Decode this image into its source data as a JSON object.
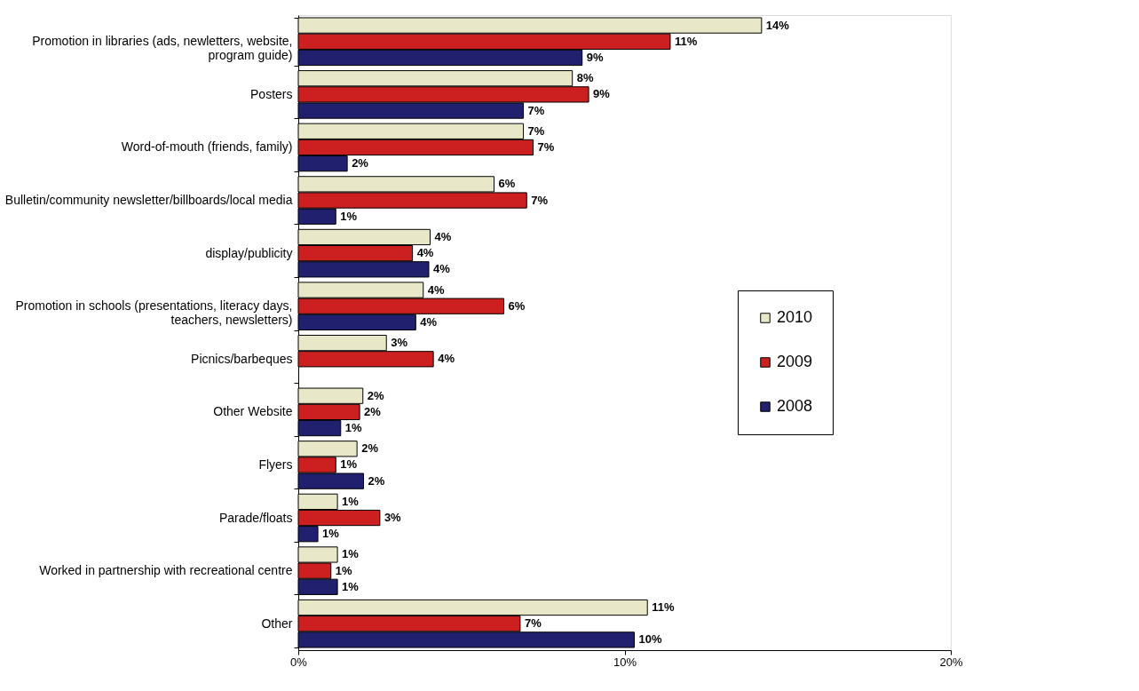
{
  "chart_data": {
    "type": "bar",
    "orientation": "horizontal",
    "categories": [
      "Promotion in libraries (ads, newletters, website, program guide)",
      "Posters",
      "Word-of-mouth (friends, family)",
      "Bulletin/community newsletter/billboards/local media",
      "display/publicity",
      "Promotion in schools (presentations, literacy days, teachers, newsletters)",
      "Picnics/barbeques",
      "Other Website",
      "Flyers",
      "Parade/floats",
      "Worked in partnership with recreational centre",
      "Other"
    ],
    "series": [
      {
        "name": "2010",
        "color": "#e8e8c8",
        "values": [
          14.2,
          8.4,
          6.9,
          6.0,
          4.04,
          3.83,
          2.7,
          1.98,
          1.8,
          1.2,
          1.2,
          10.7
        ],
        "value_labels": [
          "14%",
          "8%",
          "7%",
          "6%",
          "4%",
          "4%",
          "3%",
          "2%",
          "2%",
          "1%",
          "1%",
          "11%"
        ]
      },
      {
        "name": "2009",
        "color": "#cc2020",
        "values": [
          11.4,
          8.9,
          7.2,
          7.0,
          3.5,
          6.3,
          4.14,
          1.88,
          1.15,
          2.5,
          1.0,
          6.8
        ],
        "value_labels": [
          "11%",
          "9%",
          "7%",
          "7%",
          "4%",
          "6%",
          "4%",
          "2%",
          "1%",
          "3%",
          "1%",
          "7%"
        ]
      },
      {
        "name": "2008",
        "color": "#20206e",
        "values": [
          8.7,
          6.9,
          1.5,
          1.15,
          4.0,
          3.6,
          null,
          1.3,
          2.0,
          0.6,
          1.2,
          10.3
        ],
        "value_labels": [
          "9%",
          "7%",
          "2%",
          "1%",
          "4%",
          "4%",
          null,
          "1%",
          "2%",
          "1%",
          "1%",
          "10%"
        ]
      }
    ],
    "xlim": [
      0,
      20
    ],
    "xticks": [
      {
        "value": 0,
        "label": "0%"
      },
      {
        "value": 10,
        "label": "10%"
      },
      {
        "value": 20,
        "label": "20%"
      }
    ],
    "grid": false,
    "legend": "right"
  }
}
